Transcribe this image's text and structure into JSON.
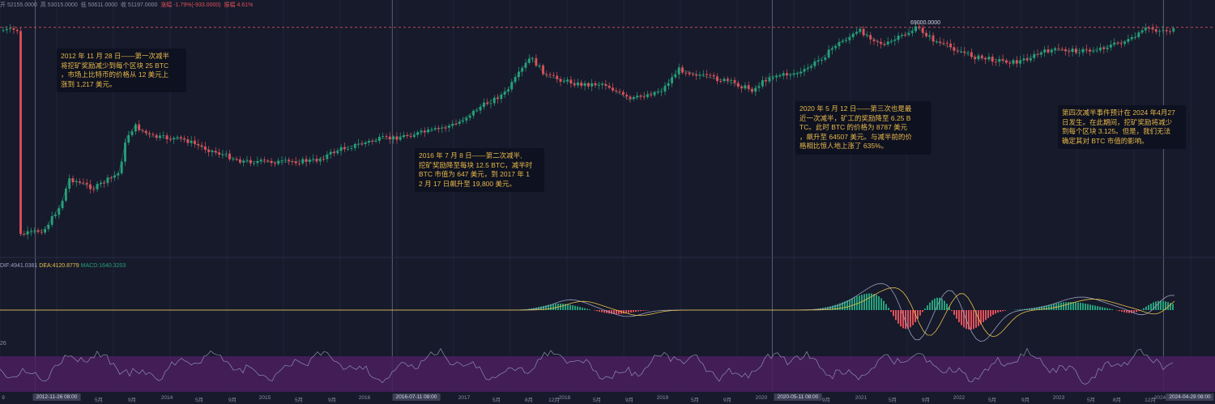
{
  "header": {
    "open": "开 52155.0000",
    "high": "高 53015.0000",
    "low": "低 50611.0000",
    "close": "收 51197.0000",
    "change": "涨幅 -1.79%(-933.0000)",
    "amplitude": "振幅 4.61%"
  },
  "macd_legend": {
    "dif": "DIF:4941.0381",
    "dea": "DEA:4120.8779",
    "macd": "MACD:1640.3203"
  },
  "rsi_value": "26",
  "annotations": {
    "halving1": "2012 年 11 月 28 日——第一次减半\n将挖矿奖励减少到每个区块 25 BTC\n，市场上比特币的价格从 12 美元上\n涨到 1,217 美元。",
    "halving2": "2016 年 7 月 8 日——第二次减半,\n挖矿奖励降至每块 12.5 BTC，减半时\n BTC 市值为 647 美元，到 2017 年 1\n2 月 17 日飙升至 19,800 美元。",
    "halving3": "2020 年 5 月 12 日——第三次也是最\n近一次减半，矿工的奖励降至 6.25 B\nTC。此时 BTC 的价格为 8787 美元\n，飙升至 64507 美元。与减半前的价\n格相比惊人地上涨了 635%。",
    "halving4": "第四次减半事件预计在 2024 年4月27\n日发生。在此期间，挖矿奖励将减少\n到每个区块 3.125。但是，我们无法\n确定其对 BTC 市值的影响。",
    "peak_label": "69000.0000"
  },
  "x_axis": {
    "ticks": [
      "9",
      "5月",
      "9月",
      "2014",
      "5月",
      "9月",
      "2015",
      "5月",
      "9月",
      "2016",
      "2017",
      "5月",
      "8月",
      "12月",
      "2018",
      "5月",
      "9月",
      "2019",
      "5月",
      "9月",
      "2020",
      "9月",
      "2021",
      "5月",
      "9月",
      "2022",
      "5月",
      "9月",
      "2023",
      "5月",
      "8月",
      "12月",
      "2024"
    ],
    "badges": [
      "2012-11-26 08:00",
      "2016-07-11 08:00",
      "2020-05-11 08:00",
      "2024-04-29 08:00"
    ]
  },
  "colors": {
    "up": "#26a17b",
    "down": "#e0505a",
    "background": "#161a2b",
    "annotation_text": "#e8b84a",
    "dif_line": "#9aa0c0",
    "dea_line": "#e8c04a",
    "rsi_band": "#4a1f5e"
  },
  "chart_data": {
    "type": "line",
    "title": "",
    "xlabel": "",
    "ylabel": "",
    "scale": "log",
    "series": [
      {
        "name": "",
        "x": [
          "2012-10",
          "2012-11",
          "2013-01",
          "2013-03",
          "2013-04",
          "2013-07",
          "2013-10",
          "2013-11",
          "2013-12",
          "2014-02",
          "2014-06",
          "2014-09",
          "2015-01",
          "2015-06",
          "2015-10",
          "2016-01",
          "2016-06",
          "2016-07",
          "2016-12",
          "2017-03",
          "2017-06",
          "2017-09",
          "2017-12",
          "2018-02",
          "2018-06",
          "2018-09",
          "2018-12",
          "2019-04",
          "2019-06",
          "2019-09",
          "2019-12",
          "2020-03",
          "2020-05",
          "2020-09",
          "2020-12",
          "2021-01",
          "2021-04",
          "2021-07",
          "2021-11",
          "2022-01",
          "2022-06",
          "2022-11",
          "2023-03",
          "2023-08",
          "2024-01",
          "2024-03",
          "2024-04"
        ],
        "values": [
          11,
          12,
          14,
          40,
          120,
          80,
          150,
          700,
          1100,
          700,
          620,
          400,
          250,
          240,
          260,
          420,
          650,
          647,
          900,
          1200,
          2500,
          4500,
          19800,
          9000,
          6300,
          6500,
          3300,
          5000,
          12000,
          9000,
          7200,
          5000,
          8787,
          10500,
          23000,
          33000,
          60000,
          33000,
          69000,
          40000,
          20000,
          16000,
          27000,
          26000,
          42000,
          70000,
          62000
        ]
      }
    ],
    "halvings": [
      "2012-11-28",
      "2016-07-08",
      "2020-05-12",
      "2024-04-27"
    ]
  }
}
